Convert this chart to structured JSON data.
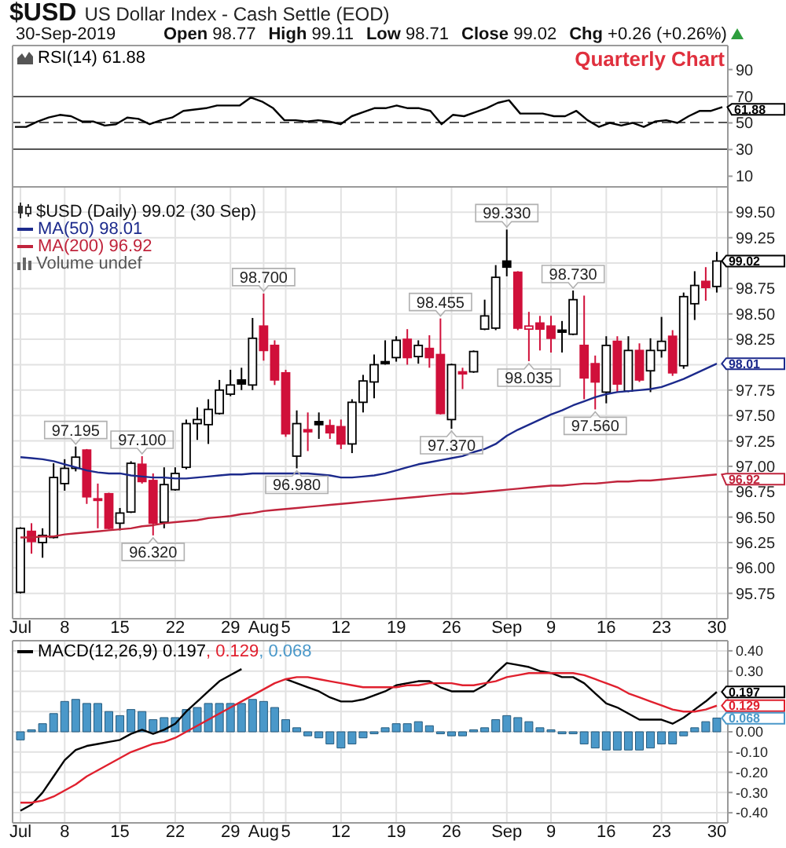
{
  "chart_data": [
    {
      "type": "line",
      "title": "$USD",
      "subtitle": "US Dollar Index - Cash Settle (EOD)",
      "annotations": [
        "30-Sep-2019",
        "Open 98.77",
        "High 99.11",
        "Low 98.71",
        "Close 99.02",
        "Chg +0.26 (+0.26%)",
        "Quarterly Chart"
      ],
      "categories": [
        null,
        null,
        null,
        null,
        null,
        null,
        null,
        null,
        null,
        null,
        null,
        null,
        null,
        null,
        null,
        null,
        null,
        null,
        null,
        null,
        null,
        null,
        null,
        null,
        null,
        null,
        null,
        null,
        null,
        null,
        null,
        null,
        null,
        null,
        null,
        null,
        null,
        null,
        null,
        null,
        null,
        null,
        null,
        null,
        null,
        null,
        null,
        null,
        null,
        null,
        null,
        null,
        null,
        null,
        null,
        null,
        null,
        null,
        null,
        null,
        null,
        null,
        null,
        null
      ],
      "series": [
        {
          "name": "RSI(14) 61.88",
          "color": "#000000",
          "values": [
            47,
            47,
            51,
            54,
            56,
            55,
            51,
            51,
            48,
            49,
            54,
            53,
            49,
            52,
            54,
            59,
            60,
            61,
            63,
            63,
            63,
            69,
            66,
            61,
            52,
            52,
            51,
            52,
            51,
            49,
            55,
            58,
            61,
            61,
            63,
            61,
            61,
            59,
            49,
            56,
            55,
            58,
            61,
            65,
            67,
            57,
            57,
            57,
            55,
            55,
            59,
            52,
            47,
            50,
            48,
            50,
            47,
            51,
            52,
            50,
            55,
            59,
            59,
            61.88
          ],
          "value_labels": [
            null,
            null,
            null,
            null,
            null,
            null,
            null,
            null,
            null,
            null,
            null,
            null,
            null,
            null,
            null,
            null,
            null,
            null,
            null,
            null,
            null,
            null,
            null,
            null,
            null,
            null,
            null,
            null,
            null,
            null,
            null,
            null,
            null,
            null,
            null,
            null,
            null,
            null,
            null,
            null,
            null,
            null,
            null,
            null,
            null,
            null,
            null,
            null,
            null,
            null,
            null,
            null,
            null,
            null,
            null,
            null,
            null,
            null,
            null,
            null,
            null,
            null,
            null,
            "61.88"
          ]
        }
      ],
      "ylim": [
        2,
        108
      ],
      "yticks": [
        10,
        30,
        50,
        70,
        90
      ],
      "ref_lines": [
        {
          "axis": "y",
          "value": 70,
          "color": "#555555"
        },
        {
          "axis": "y",
          "value": 30,
          "color": "#555555"
        },
        {
          "axis": "y",
          "value": 50,
          "color": "#555555",
          "line_style": "dashed"
        }
      ],
      "grid": "x",
      "legend": "top left",
      "tick_labels": "y"
    },
    {
      "type": "candlestick",
      "legend_title": "$USD (Daily) 99.02 (30 Sep)",
      "categories": [
        "Jul",
        null,
        null,
        null,
        "8",
        null,
        null,
        null,
        null,
        "15",
        null,
        null,
        null,
        null,
        "22",
        null,
        null,
        null,
        null,
        "29",
        null,
        null,
        "Aug",
        null,
        "5",
        null,
        null,
        null,
        null,
        "12",
        null,
        null,
        null,
        null,
        "19",
        null,
        null,
        null,
        null,
        "26",
        null,
        null,
        null,
        null,
        "Sep",
        null,
        null,
        null,
        "9",
        null,
        null,
        null,
        null,
        "16",
        null,
        null,
        null,
        null,
        "23",
        null,
        null,
        null,
        null,
        "30"
      ],
      "ohlc": [
        [
          95.76,
          96.4,
          95.75,
          96.39
        ],
        [
          96.36,
          96.44,
          96.14,
          96.26
        ],
        [
          96.25,
          96.39,
          96.1,
          96.32
        ],
        [
          96.3,
          97.03,
          96.29,
          96.89
        ],
        [
          96.83,
          97.07,
          96.76,
          96.98
        ],
        [
          96.98,
          97.195,
          96.95,
          97.09
        ],
        [
          97.16,
          97.17,
          96.63,
          96.7
        ],
        [
          96.68,
          96.83,
          96.39,
          96.67
        ],
        [
          96.73,
          96.74,
          96.38,
          96.39
        ],
        [
          96.44,
          96.59,
          96.37,
          96.54
        ],
        [
          96.55,
          97.05,
          96.54,
          97.03
        ],
        [
          97.02,
          97.1,
          96.83,
          96.85
        ],
        [
          96.86,
          96.93,
          96.32,
          96.44
        ],
        [
          96.45,
          96.99,
          96.39,
          96.82
        ],
        [
          96.77,
          96.99,
          96.76,
          96.93
        ],
        [
          96.99,
          97.46,
          96.97,
          97.42
        ],
        [
          97.42,
          97.58,
          97.26,
          97.46
        ],
        [
          97.41,
          97.66,
          97.22,
          97.56
        ],
        [
          97.52,
          97.85,
          97.51,
          97.75
        ],
        [
          97.71,
          97.95,
          97.69,
          97.8
        ],
        [
          97.85,
          97.97,
          97.75,
          97.81
        ],
        [
          97.8,
          98.46,
          97.75,
          98.26
        ],
        [
          98.38,
          98.7,
          98.04,
          98.14
        ],
        [
          98.19,
          98.24,
          97.8,
          97.85
        ],
        [
          97.92,
          97.95,
          97.29,
          97.32
        ],
        [
          97.1,
          97.55,
          96.98,
          97.42
        ],
        [
          97.36,
          97.53,
          97.15,
          97.34
        ],
        [
          97.44,
          97.53,
          97.27,
          97.41
        ],
        [
          97.4,
          97.46,
          97.27,
          97.33
        ],
        [
          97.39,
          97.46,
          97.17,
          97.22
        ],
        [
          97.22,
          97.66,
          97.13,
          97.63
        ],
        [
          97.63,
          97.9,
          97.53,
          97.84
        ],
        [
          97.83,
          98.1,
          97.67,
          98.0
        ],
        [
          98.03,
          98.24,
          98.0,
          98.01
        ],
        [
          98.07,
          98.28,
          98.03,
          98.24
        ],
        [
          98.25,
          98.35,
          98.0,
          98.07
        ],
        [
          98.08,
          98.24,
          98.01,
          98.19
        ],
        [
          98.16,
          98.29,
          97.97,
          98.07
        ],
        [
          98.1,
          98.455,
          97.51,
          97.52
        ],
        [
          97.46,
          98.01,
          97.37,
          98.0
        ],
        [
          97.93,
          97.97,
          97.76,
          97.91
        ],
        [
          97.93,
          98.14,
          97.92,
          98.13
        ],
        [
          98.35,
          98.64,
          98.34,
          98.48
        ],
        [
          98.36,
          98.98,
          98.34,
          98.86
        ],
        [
          99.02,
          99.33,
          98.87,
          98.96
        ],
        [
          98.91,
          98.92,
          98.34,
          98.36
        ],
        [
          98.35,
          98.52,
          98.035,
          98.38
        ],
        [
          98.41,
          98.48,
          98.14,
          98.35
        ],
        [
          98.38,
          98.48,
          98.12,
          98.26
        ],
        [
          98.34,
          98.43,
          98.12,
          98.32
        ],
        [
          98.3,
          98.73,
          98.29,
          98.64
        ],
        [
          98.19,
          98.68,
          97.66,
          97.87
        ],
        [
          98.01,
          98.09,
          97.56,
          97.83
        ],
        [
          97.73,
          98.28,
          97.62,
          98.19
        ],
        [
          98.23,
          98.28,
          97.73,
          97.81
        ],
        [
          97.74,
          98.28,
          97.73,
          98.14
        ],
        [
          98.14,
          98.21,
          97.83,
          97.85
        ],
        [
          97.94,
          98.26,
          97.73,
          98.14
        ],
        [
          98.14,
          98.47,
          98.07,
          98.23
        ],
        [
          98.28,
          98.34,
          97.89,
          97.92
        ],
        [
          97.99,
          98.71,
          97.96,
          98.67
        ],
        [
          98.6,
          98.92,
          98.44,
          98.78
        ],
        [
          98.82,
          98.96,
          98.63,
          98.76
        ],
        [
          98.77,
          99.11,
          98.71,
          99.02
        ]
      ],
      "colors": [
        "#000000",
        "#d0103a",
        "#000000",
        "#000000",
        "#000000",
        "#000000",
        "#d0103a",
        "#d0103a",
        "#d0103a",
        "#000000",
        "#000000",
        "#d0103a",
        "#d0103a",
        "#000000",
        "#000000",
        "#000000",
        "#000000",
        "#000000",
        "#000000",
        "#000000",
        "#000000",
        "#000000",
        "#d0103a",
        "#d0103a",
        "#d0103a",
        "#000000",
        "#d0103a",
        "#000000",
        "#d0103a",
        "#d0103a",
        "#000000",
        "#000000",
        "#000000",
        "#000000",
        "#000000",
        "#d0103a",
        "#000000",
        "#d0103a",
        "#d0103a",
        "#000000",
        "#d0103a",
        "#000000",
        "#000000",
        "#000000",
        "#000000",
        "#d0103a",
        "#d0103a",
        "#d0103a",
        "#d0103a",
        "#000000",
        "#000000",
        "#d0103a",
        "#d0103a",
        "#000000",
        "#d0103a",
        "#000000",
        "#d0103a",
        "#000000",
        "#000000",
        "#d0103a",
        "#000000",
        "#000000",
        "#d0103a",
        "#000000"
      ],
      "value_labels": [
        null,
        null,
        null,
        null,
        null,
        null,
        null,
        null,
        null,
        null,
        null,
        null,
        null,
        null,
        null,
        null,
        null,
        null,
        null,
        null,
        null,
        null,
        null,
        null,
        null,
        null,
        null,
        null,
        null,
        null,
        null,
        null,
        null,
        null,
        null,
        null,
        null,
        null,
        null,
        null,
        null,
        null,
        null,
        null,
        null,
        null,
        null,
        null,
        null,
        null,
        null,
        null,
        null,
        null,
        null,
        null,
        null,
        null,
        null,
        null,
        null,
        null,
        null,
        "99.02"
      ],
      "series": [
        {
          "type": "line",
          "name": "MA(50) 98.01",
          "color": "#1c2a8c",
          "values": [
            97.09,
            97.08,
            97.07,
            97.05,
            97.02,
            96.99,
            96.96,
            96.94,
            96.93,
            96.93,
            96.91,
            96.9,
            96.89,
            96.89,
            96.88,
            96.88,
            96.89,
            96.9,
            96.91,
            96.92,
            96.92,
            96.93,
            96.93,
            96.93,
            96.93,
            96.93,
            96.93,
            96.92,
            96.91,
            96.89,
            96.89,
            96.9,
            96.91,
            96.93,
            96.96,
            96.99,
            97.02,
            97.04,
            97.06,
            97.08,
            97.1,
            97.14,
            97.17,
            97.22,
            97.3,
            97.36,
            97.41,
            97.46,
            97.51,
            97.55,
            97.6,
            97.64,
            97.68,
            97.71,
            97.73,
            97.74,
            97.75,
            97.76,
            97.78,
            97.82,
            97.86,
            97.91,
            97.96,
            98.01
          ],
          "value_labels": [
            null,
            null,
            null,
            null,
            null,
            null,
            null,
            null,
            null,
            null,
            null,
            null,
            null,
            null,
            null,
            null,
            null,
            null,
            null,
            null,
            null,
            null,
            null,
            null,
            null,
            null,
            null,
            null,
            null,
            null,
            null,
            null,
            null,
            null,
            null,
            null,
            null,
            null,
            null,
            null,
            null,
            null,
            null,
            null,
            null,
            null,
            null,
            null,
            null,
            null,
            null,
            null,
            null,
            null,
            null,
            null,
            null,
            null,
            null,
            null,
            null,
            null,
            null,
            "98.01"
          ]
        },
        {
          "type": "line",
          "name": "MA(200) 96.92",
          "color": "#c0243c",
          "values": [
            96.3,
            96.3,
            96.31,
            96.31,
            96.33,
            96.34,
            96.35,
            96.36,
            96.37,
            96.38,
            96.39,
            96.41,
            96.42,
            96.44,
            96.45,
            96.46,
            96.47,
            96.49,
            96.5,
            96.51,
            96.53,
            96.54,
            96.56,
            96.57,
            96.58,
            96.59,
            96.6,
            96.61,
            96.62,
            96.63,
            96.64,
            96.65,
            96.66,
            96.67,
            96.68,
            96.69,
            96.7,
            96.71,
            96.72,
            96.73,
            96.73,
            96.74,
            96.75,
            96.76,
            96.77,
            96.78,
            96.79,
            96.8,
            96.81,
            96.81,
            96.82,
            96.83,
            96.83,
            96.84,
            96.85,
            96.85,
            96.86,
            96.86,
            96.87,
            96.88,
            96.89,
            96.9,
            96.91,
            96.92
          ],
          "value_labels": [
            null,
            null,
            null,
            null,
            null,
            null,
            null,
            null,
            null,
            null,
            null,
            null,
            null,
            null,
            null,
            null,
            null,
            null,
            null,
            null,
            null,
            null,
            null,
            null,
            null,
            null,
            null,
            null,
            null,
            null,
            null,
            null,
            null,
            null,
            null,
            null,
            null,
            null,
            null,
            null,
            null,
            null,
            null,
            null,
            null,
            null,
            null,
            null,
            null,
            null,
            null,
            null,
            null,
            null,
            null,
            null,
            null,
            null,
            null,
            null,
            null,
            null,
            null,
            "96.92"
          ]
        }
      ],
      "annotations": [
        {
          "text": "97.195",
          "y": 97.195
        },
        {
          "text": "97.100",
          "y": 97.1
        },
        {
          "text": "96.320",
          "y": 96.32
        },
        {
          "text": "98.700",
          "y": 98.7
        },
        {
          "text": "96.980",
          "y": 96.98
        },
        {
          "text": "98.455",
          "y": 98.455
        },
        {
          "text": "97.370",
          "y": 97.37
        },
        {
          "text": "99.330",
          "y": 99.33
        },
        {
          "text": "98.035",
          "y": 98.035
        },
        {
          "text": "98.730",
          "y": 98.73
        },
        {
          "text": "97.560",
          "y": 97.56
        },
        "Volume undef"
      ],
      "ylim": [
        95.5,
        99.75
      ],
      "yticks": [
        95.75,
        {
          "value": 96,
          "label": "96.00"
        },
        96.25,
        {
          "value": 96.5,
          "label": "96.50"
        },
        96.75,
        {
          "value": 97,
          "label": "97.00"
        },
        97.25,
        {
          "value": 97.5,
          "label": "97.50"
        },
        97.75,
        {
          "value": 98,
          "label": null
        },
        98.25,
        {
          "value": 98.5,
          "label": "98.50"
        },
        98.75,
        {
          "value": 99,
          "label": null
        },
        99.25,
        {
          "value": 99.5,
          "label": "99.50"
        }
      ],
      "grid": true,
      "legend": "top left"
    },
    {
      "type": "line",
      "categories": [
        "Jul",
        null,
        null,
        null,
        "8",
        null,
        null,
        null,
        null,
        "15",
        null,
        null,
        null,
        null,
        "22",
        null,
        null,
        null,
        null,
        "29",
        null,
        null,
        "Aug",
        null,
        "5",
        null,
        null,
        null,
        null,
        "12",
        null,
        null,
        null,
        null,
        "19",
        null,
        null,
        null,
        null,
        "26",
        null,
        null,
        null,
        null,
        "Sep",
        null,
        null,
        null,
        "9",
        null,
        null,
        null,
        null,
        "16",
        null,
        null,
        null,
        null,
        "23",
        null,
        null,
        null,
        null,
        "30"
      ],
      "series": [
        {
          "type": "line",
          "name": "MACD(12,26,9) 0.197",
          "color": "#000000",
          "values": [
            -0.39,
            -0.36,
            -0.3,
            -0.22,
            -0.14,
            -0.09,
            -0.07,
            -0.06,
            -0.05,
            -0.04,
            -0.01,
            0.01,
            -0.01,
            0.01,
            0.04,
            0.1,
            0.15,
            0.2,
            0.25,
            0.28,
            0.31,
            null,
            null,
            null,
            0.26,
            0.24,
            0.22,
            0.2,
            0.17,
            0.15,
            0.15,
            0.16,
            0.18,
            0.2,
            0.23,
            0.24,
            0.25,
            0.25,
            0.22,
            0.2,
            0.2,
            0.2,
            0.23,
            0.29,
            0.34,
            0.33,
            0.32,
            0.3,
            0.29,
            0.27,
            0.27,
            0.24,
            0.19,
            0.14,
            0.12,
            0.09,
            0.06,
            0.06,
            0.06,
            0.04,
            0.07,
            0.11,
            0.15,
            0.197
          ],
          "value_labels": [
            null,
            null,
            null,
            null,
            null,
            null,
            null,
            null,
            null,
            null,
            null,
            null,
            null,
            null,
            null,
            null,
            null,
            null,
            null,
            null,
            null,
            null,
            null,
            null,
            null,
            null,
            null,
            null,
            null,
            null,
            null,
            null,
            null,
            null,
            null,
            null,
            null,
            null,
            null,
            null,
            null,
            null,
            null,
            null,
            null,
            null,
            null,
            null,
            null,
            null,
            null,
            null,
            null,
            null,
            null,
            null,
            null,
            null,
            null,
            null,
            null,
            null,
            null,
            "0.197"
          ]
        },
        {
          "type": "line",
          "name": ", 0.129",
          "color": "#e0202e",
          "values": [
            -0.35,
            -0.35,
            -0.34,
            -0.32,
            -0.29,
            -0.26,
            -0.22,
            -0.19,
            -0.16,
            -0.13,
            -0.1,
            -0.08,
            -0.06,
            -0.05,
            -0.03,
            0.0,
            0.03,
            0.06,
            0.09,
            0.12,
            0.15,
            0.18,
            0.21,
            0.24,
            0.26,
            0.27,
            0.27,
            0.26,
            0.25,
            0.24,
            0.23,
            0.22,
            0.22,
            0.22,
            0.22,
            0.23,
            0.23,
            0.24,
            0.24,
            0.24,
            0.23,
            0.23,
            0.24,
            0.25,
            0.27,
            0.28,
            0.29,
            0.29,
            0.29,
            0.29,
            0.29,
            0.28,
            0.26,
            0.24,
            0.22,
            0.19,
            0.17,
            0.15,
            0.13,
            0.11,
            0.1,
            0.1,
            0.11,
            0.129
          ],
          "value_labels": [
            null,
            null,
            null,
            null,
            null,
            null,
            null,
            null,
            null,
            null,
            null,
            null,
            null,
            null,
            null,
            null,
            null,
            null,
            null,
            null,
            null,
            null,
            null,
            null,
            null,
            null,
            null,
            null,
            null,
            null,
            null,
            null,
            null,
            null,
            null,
            null,
            null,
            null,
            null,
            null,
            null,
            null,
            null,
            null,
            null,
            null,
            null,
            null,
            null,
            null,
            null,
            null,
            null,
            null,
            null,
            null,
            null,
            null,
            null,
            null,
            null,
            null,
            null,
            "0.129"
          ]
        },
        {
          "type": "bar",
          "name": ", 0.068",
          "color": "#4a98c9",
          "values": [
            -0.04,
            0.01,
            0.04,
            0.09,
            0.15,
            0.16,
            0.14,
            0.14,
            0.1,
            0.08,
            0.11,
            0.1,
            0.06,
            0.07,
            0.07,
            0.11,
            0.12,
            0.14,
            0.14,
            0.14,
            0.14,
            0.16,
            0.15,
            0.12,
            0.06,
            0.02,
            -0.02,
            -0.03,
            -0.06,
            -0.08,
            -0.06,
            -0.03,
            -0.01,
            0.02,
            0.04,
            0.04,
            0.05,
            0.03,
            -0.01,
            -0.02,
            -0.02,
            0.01,
            0.02,
            0.06,
            0.08,
            0.07,
            0.05,
            0.02,
            0.01,
            -0.01,
            -0.01,
            -0.06,
            -0.08,
            -0.09,
            -0.09,
            -0.09,
            -0.09,
            -0.08,
            -0.06,
            -0.06,
            -0.02,
            0.02,
            0.05,
            0.068
          ]
        }
      ],
      "annotations": [
        "0.068"
      ],
      "ylim": [
        -0.45,
        0.45
      ],
      "yticks": [
        {
          "value": -0.4,
          "label": "-0.40"
        },
        {
          "value": -0.3,
          "label": "-0.30"
        },
        {
          "value": -0.2,
          "label": "-0.20"
        },
        {
          "value": -0.1,
          "label": "-0.10"
        },
        {
          "value": 0,
          "label": "0.00"
        },
        {
          "value": 0.1,
          "label": null
        },
        {
          "value": 0.2,
          "label": null
        },
        {
          "value": 0.3,
          "label": "0.30"
        },
        {
          "value": 0.4,
          "label": "0.40"
        }
      ],
      "grid": true,
      "legend": "top left"
    }
  ]
}
